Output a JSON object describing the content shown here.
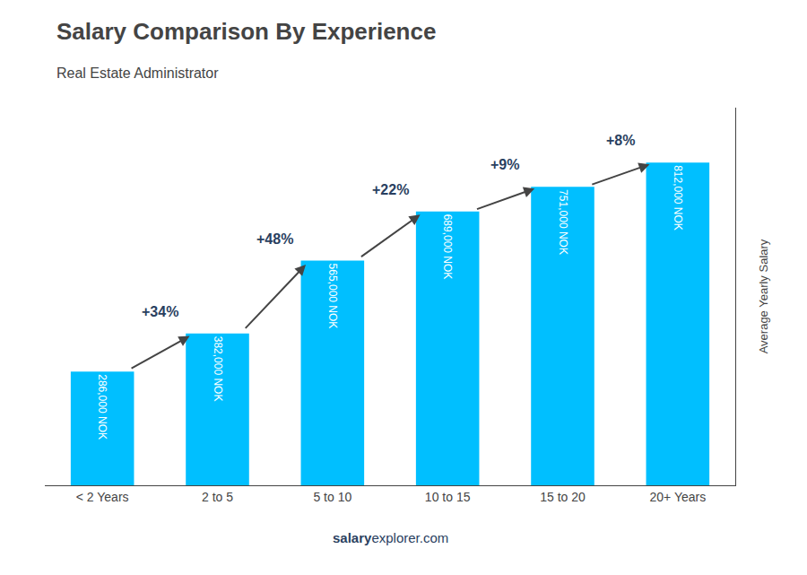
{
  "chart_data": {
    "type": "bar",
    "title": "Salary Comparison By Experience",
    "subtitle": "Real Estate Administrator",
    "categories": [
      "< 2 Years",
      "2 to 5",
      "5 to 10",
      "10 to 15",
      "15 to 20",
      "20+ Years"
    ],
    "values": [
      286000,
      382000,
      565000,
      689000,
      751000,
      812000
    ],
    "value_labels": [
      "286,000 NOK",
      "382,000 NOK",
      "565,000 NOK",
      "689,000 NOK",
      "751,000 NOK",
      "812,000 NOK"
    ],
    "data_labels": true,
    "annotations": [
      "+34%",
      "+48%",
      "+22%",
      "+9%",
      "+8%"
    ],
    "ylabel": "Average Yearly Salary",
    "footer": [
      "salary",
      "explorer.com"
    ],
    "color": "#00bfff",
    "ylim": [
      0,
      950000
    ],
    "tick_labels": "x",
    "grid": false
  }
}
